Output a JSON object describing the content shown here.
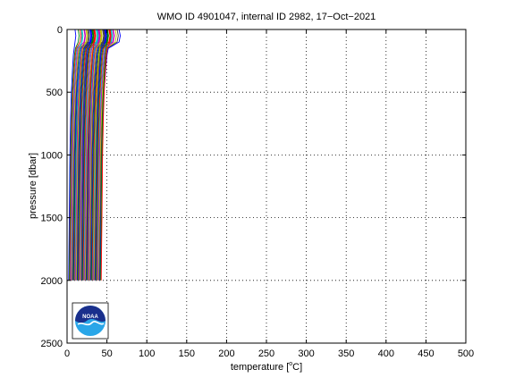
{
  "chart_data": {
    "type": "line",
    "title": "WMO ID 4901047, internal ID 2982, 17−Oct−2021",
    "xlabel_main": "temperature [",
    "xlabel_sup": "o",
    "xlabel_end": "C]",
    "ylabel": "pressure [dbar]",
    "xlim": [
      0,
      500
    ],
    "ylim": [
      0,
      2500
    ],
    "y_reversed": true,
    "grid": true,
    "x_ticks": [
      0,
      50,
      100,
      150,
      200,
      250,
      300,
      350,
      400,
      450,
      500
    ],
    "y_ticks": [
      0,
      500,
      1000,
      1500,
      2000,
      2500
    ],
    "series_summary": {
      "profile_count": 52,
      "pressure_range": [
        0,
        2000
      ],
      "profile_shape": [
        [
          0,
          8
        ],
        [
          50,
          9
        ],
        [
          100,
          8
        ],
        [
          150,
          7
        ],
        [
          200,
          6
        ],
        [
          300,
          5
        ],
        [
          400,
          4.2
        ],
        [
          500,
          3.4
        ],
        [
          700,
          2.5
        ],
        [
          1000,
          1.6
        ],
        [
          1500,
          0.8
        ],
        [
          2000,
          0
        ]
      ],
      "first_offset": 2,
      "offset_step": 0.8,
      "surface_extra_values": [
        0,
        4,
        6,
        8,
        10,
        12,
        14,
        16,
        18,
        20
      ],
      "colors": [
        "#0000ff",
        "#008000",
        "#ff0000",
        "#00bfbf",
        "#bf00bf",
        "#bfbf00",
        "#404040"
      ]
    }
  },
  "logo": {
    "name": "noaa-logo",
    "text": "NOAA",
    "colors": {
      "dark_blue": "#1a2f8c",
      "light_blue": "#29a6e8",
      "white": "#ffffff"
    }
  }
}
